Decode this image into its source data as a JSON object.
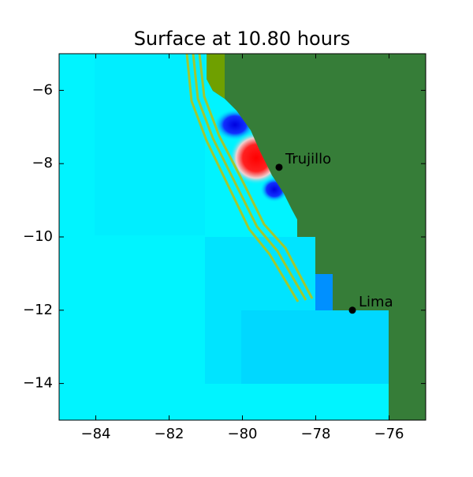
{
  "chart_data": {
    "type": "map",
    "title": "Surface at 10.80 hours",
    "xlim": [
      -85,
      -75
    ],
    "ylim": [
      -15,
      -5
    ],
    "xticks": [
      {
        "value": -84,
        "label": "−84"
      },
      {
        "value": -82,
        "label": "−82"
      },
      {
        "value": -80,
        "label": "−80"
      },
      {
        "value": -78,
        "label": "−78"
      },
      {
        "value": -76,
        "label": "−76"
      }
    ],
    "yticks": [
      {
        "value": -14,
        "label": "−14"
      },
      {
        "value": -12,
        "label": "−12"
      },
      {
        "value": -10,
        "label": "−10"
      },
      {
        "value": -8,
        "label": "−8"
      },
      {
        "value": -6,
        "label": "−6"
      }
    ],
    "points": [
      {
        "name": "Trujillo",
        "x": -79,
        "y": -8.1
      },
      {
        "name": "Lima",
        "x": -77,
        "y": -12
      }
    ],
    "point_color": "#000000"
  }
}
